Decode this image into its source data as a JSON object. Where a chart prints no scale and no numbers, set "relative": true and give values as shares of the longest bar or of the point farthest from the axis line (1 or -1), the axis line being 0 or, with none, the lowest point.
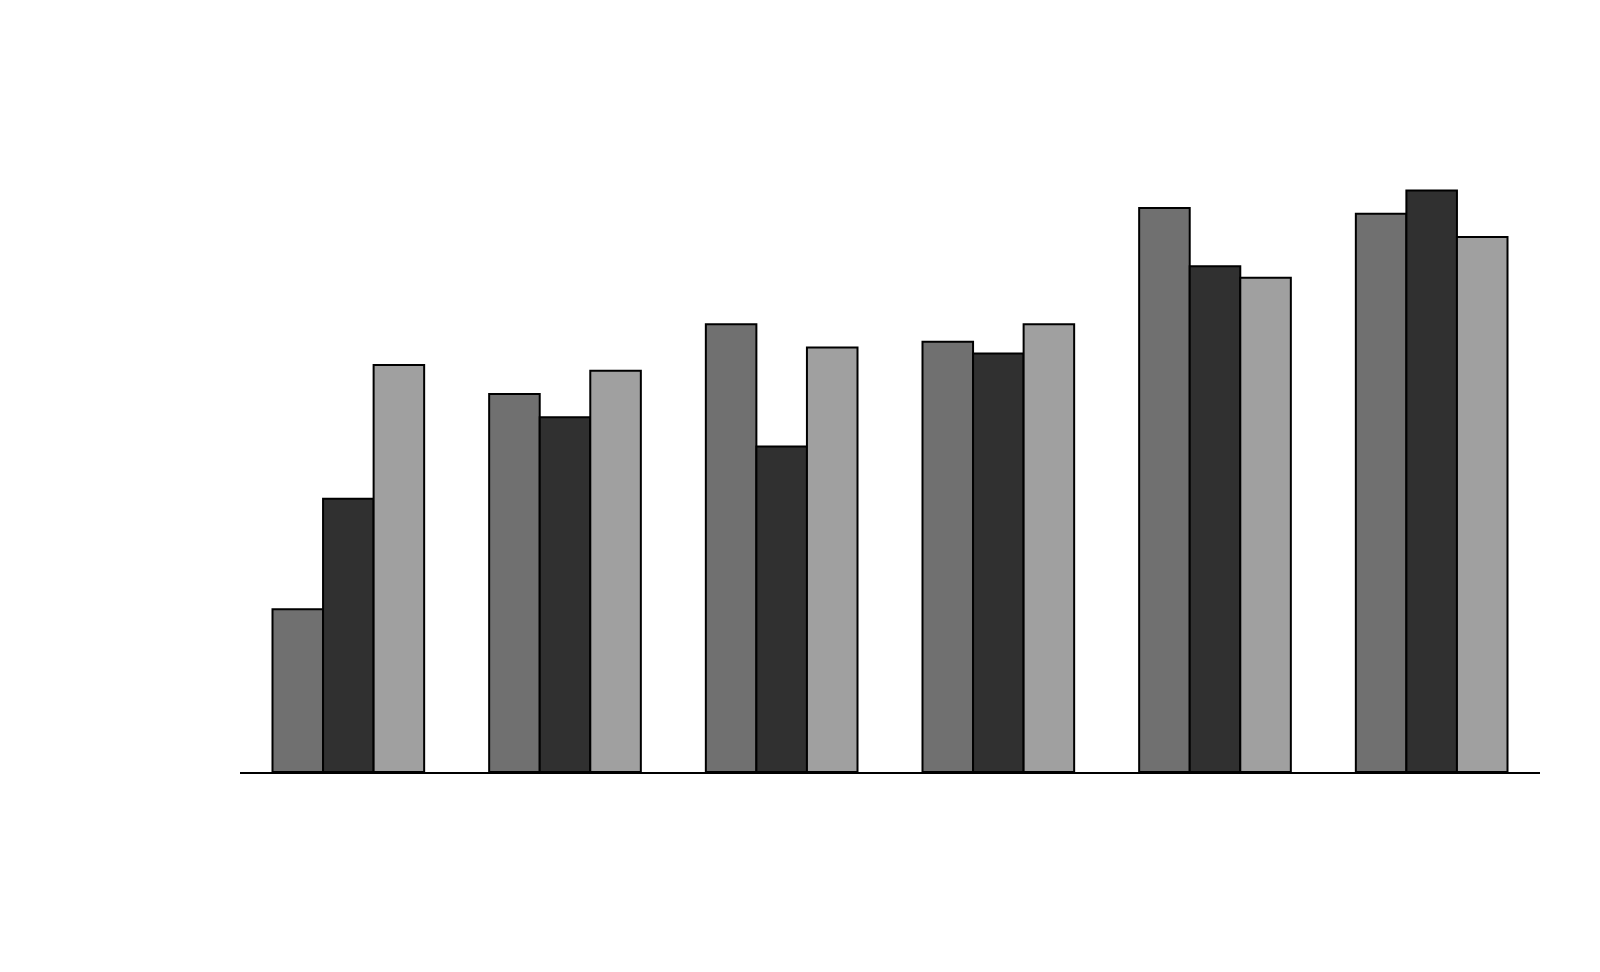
{
  "chart_data": {
    "type": "bar",
    "relative": true,
    "categories": [
      null,
      null,
      null,
      null,
      null,
      null
    ],
    "series": [
      {
        "color": "#707070",
        "values": [
          0.28,
          0.65,
          0.77,
          0.74,
          0.97,
          0.96
        ]
      },
      {
        "color": "#303030",
        "values": [
          0.47,
          0.61,
          0.56,
          0.72,
          0.87,
          1
        ]
      },
      {
        "color": "#a0a0a0",
        "values": [
          0.7,
          0.69,
          0.73,
          0.77,
          0.85,
          0.92
        ]
      }
    ]
  }
}
